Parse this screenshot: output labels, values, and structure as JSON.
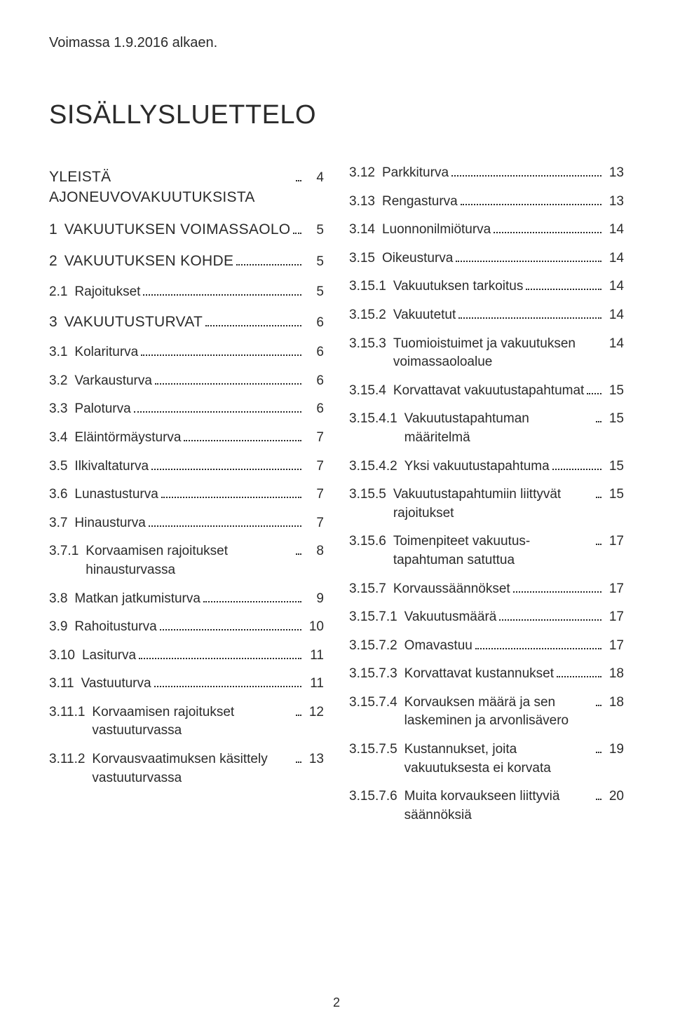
{
  "validity": "Voimassa 1.9.2016 alkaen.",
  "title": "SISÄLLYSLUETTELO",
  "page_number": "2",
  "left": [
    {
      "num": "",
      "label": "Yleistä ajoneuvovakuutuksista",
      "pg": "4",
      "upper": true,
      "leader": true
    },
    {
      "num": "1",
      "label": "Vakuutuksen voimassaolo",
      "pg": "5",
      "upper": true,
      "leader": true
    },
    {
      "num": "2",
      "label": "Vakuutuksen kohde",
      "pg": "5",
      "upper": true,
      "leader": true
    },
    {
      "num": "2.1",
      "label": "Rajoitukset",
      "pg": "5",
      "upper": false,
      "leader": true
    },
    {
      "num": "3",
      "label": "Vakuutusturvat",
      "pg": "6",
      "upper": true,
      "leader": true
    },
    {
      "num": "3.1",
      "label": "Kolariturva",
      "pg": "6",
      "upper": false,
      "leader": true
    },
    {
      "num": "3.2",
      "label": "Varkausturva",
      "pg": "6",
      "upper": false,
      "leader": true
    },
    {
      "num": "3.3",
      "label": "Paloturva",
      "pg": "6",
      "upper": false,
      "leader": true
    },
    {
      "num": "3.4",
      "label": "Eläintörmäysturva",
      "pg": "7",
      "upper": false,
      "leader": true
    },
    {
      "num": "3.5",
      "label": "Ilkivaltaturva",
      "pg": "7",
      "upper": false,
      "leader": true
    },
    {
      "num": "3.6",
      "label": "Lunastusturva",
      "pg": "7",
      "upper": false,
      "leader": true
    },
    {
      "num": "3.7",
      "label": "Hinausturva",
      "pg": "7",
      "upper": false,
      "leader": true
    },
    {
      "num": "3.7.1",
      "label": "Korvaamisen rajoitukset hinausturvassa",
      "pg": "8",
      "upper": false,
      "leader": true,
      "two": true
    },
    {
      "num": "3.8",
      "label": "Matkan jatkumisturva",
      "pg": "9",
      "upper": false,
      "leader": true
    },
    {
      "num": "3.9",
      "label": "Rahoitusturva",
      "pg": "10",
      "upper": false,
      "leader": true
    },
    {
      "num": "3.10",
      "label": "Lasiturva",
      "pg": "11",
      "upper": false,
      "leader": true
    },
    {
      "num": "3.11",
      "label": "Vastuuturva",
      "pg": "11",
      "upper": false,
      "leader": true
    },
    {
      "num": "3.11.1",
      "label": "Korvaamisen rajoitukset vastuuturvassa",
      "pg": "12",
      "upper": false,
      "leader": true,
      "two": true
    },
    {
      "num": "3.11.2",
      "label": "Korvausvaatimuksen käsittely vastuuturvassa",
      "pg": "13",
      "upper": false,
      "leader": true,
      "two": true
    }
  ],
  "right": [
    {
      "num": "3.12",
      "label": "Parkkiturva",
      "pg": "13",
      "upper": false,
      "leader": true
    },
    {
      "num": "3.13",
      "label": "Rengasturva",
      "pg": "13",
      "upper": false,
      "leader": true
    },
    {
      "num": "3.14",
      "label": "Luonnonilmiöturva",
      "pg": "14",
      "upper": false,
      "leader": true
    },
    {
      "num": "3.15",
      "label": "Oikeusturva",
      "pg": "14",
      "upper": false,
      "leader": true
    },
    {
      "num": "3.15.1",
      "label": "Vakuutuksen tarkoitus",
      "pg": "14",
      "upper": false,
      "leader": true
    },
    {
      "num": "3.15.2",
      "label": "Vakuutetut",
      "pg": "14",
      "upper": false,
      "leader": true
    },
    {
      "num": "3.15.3",
      "label": "Tuomioistuimet ja vakuutuksen voimassaoloalue",
      "pg": "14",
      "upper": false,
      "leader": false,
      "two": true
    },
    {
      "num": "3.15.4",
      "label": "Korvattavat vakuutustapahtumat",
      "pg": "15",
      "upper": false,
      "leader": true,
      "two": true
    },
    {
      "num": "3.15.4.1",
      "label": "Vakuutustapahtuman määritelmä",
      "pg": "15",
      "upper": false,
      "leader": true,
      "two": true
    },
    {
      "num": "3.15.4.2",
      "label": "Yksi vakuutustapahtuma",
      "pg": "15",
      "upper": false,
      "leader": true
    },
    {
      "num": "3.15.5",
      "label": "Vakuutustapahtumiin liittyvät rajoitukset",
      "pg": "15",
      "upper": false,
      "leader": true,
      "two": true
    },
    {
      "num": "3.15.6",
      "label": "Toimenpiteet vakuutus­tapahtuman satuttua",
      "pg": "17",
      "upper": false,
      "leader": true,
      "two": true
    },
    {
      "num": "3.15.7",
      "label": "Korvaussäännökset",
      "pg": "17",
      "upper": false,
      "leader": true
    },
    {
      "num": "3.15.7.1",
      "label": "Vakuutusmäärä",
      "pg": "17",
      "upper": false,
      "leader": true
    },
    {
      "num": "3.15.7.2",
      "label": "Omavastuu",
      "pg": "17",
      "upper": false,
      "leader": true
    },
    {
      "num": "3.15.7.3",
      "label": "Korvattavat kustannukset",
      "pg": "18",
      "upper": false,
      "leader": true
    },
    {
      "num": "3.15.7.4",
      "label": "Korvauksen määrä ja sen laskeminen ja arvonlisävero",
      "pg": "18",
      "upper": false,
      "leader": true,
      "two": true
    },
    {
      "num": "3.15.7.5",
      "label": "Kustannukset, joita vakuutuksesta ei korvata",
      "pg": "19",
      "upper": false,
      "leader": true,
      "two": true
    },
    {
      "num": "3.15.7.6",
      "label": "Muita korvaukseen liittyviä säännöksiä",
      "pg": "20",
      "upper": false,
      "leader": true,
      "two": true
    }
  ]
}
